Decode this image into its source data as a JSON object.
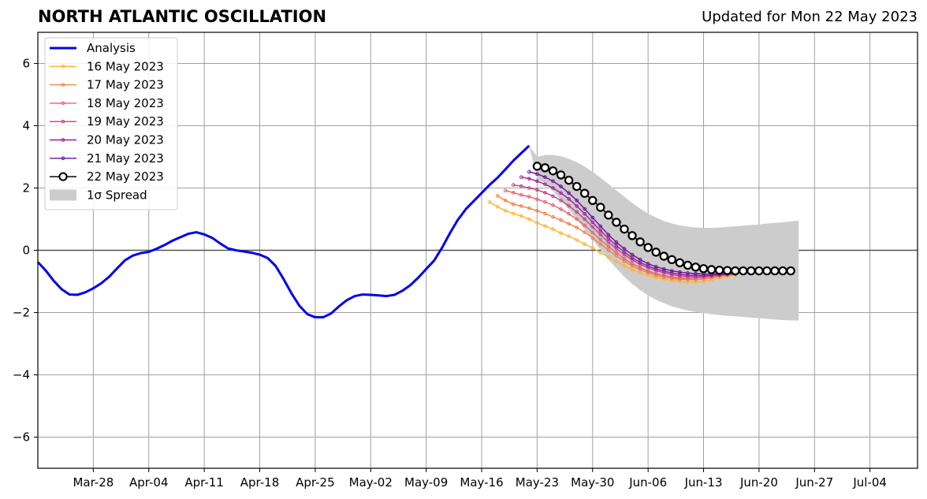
{
  "chart_data": {
    "type": "line",
    "title": "NORTH ATLANTIC OSCILLATION",
    "subtitle": "Updated for Mon 22 May 2023",
    "xlabel": "",
    "ylabel": "",
    "xlim": [
      "2023-03-21",
      "2023-07-10"
    ],
    "ylim": [
      -7,
      7
    ],
    "yticks": [
      -6,
      -4,
      -2,
      0,
      2,
      4,
      6
    ],
    "ytick_labels": [
      "−6",
      "−4",
      "−2",
      "0",
      "2",
      "4",
      "6"
    ],
    "xticks": [
      "2023-03-28",
      "2023-04-04",
      "2023-04-11",
      "2023-04-18",
      "2023-04-25",
      "2023-05-02",
      "2023-05-09",
      "2023-05-16",
      "2023-05-23",
      "2023-05-30",
      "2023-06-06",
      "2023-06-13",
      "2023-06-20",
      "2023-06-27",
      "2023-07-04"
    ],
    "xtick_labels": [
      "Mar-28",
      "Apr-04",
      "Apr-11",
      "Apr-18",
      "Apr-25",
      "May-02",
      "May-09",
      "May-16",
      "May-23",
      "May-30",
      "Jun-06",
      "Jun-13",
      "Jun-20",
      "Jun-27",
      "Jul-04"
    ],
    "grid": true,
    "legend_position": "top-left",
    "analysis": {
      "name": "Analysis",
      "color": "#0000ee",
      "x_start": "2023-03-21",
      "values": [
        -0.38,
        -0.65,
        -0.98,
        -1.25,
        -1.42,
        -1.43,
        -1.35,
        -1.22,
        -1.06,
        -0.85,
        -0.58,
        -0.32,
        -0.17,
        -0.09,
        -0.05,
        0.05,
        0.17,
        0.31,
        0.42,
        0.53,
        0.58,
        0.51,
        0.4,
        0.22,
        0.06,
        0.0,
        -0.04,
        -0.08,
        -0.14,
        -0.25,
        -0.5,
        -0.92,
        -1.38,
        -1.78,
        -2.05,
        -2.15,
        -2.15,
        -2.03,
        -1.8,
        -1.6,
        -1.47,
        -1.42,
        -1.43,
        -1.45,
        -1.47,
        -1.43,
        -1.3,
        -1.12,
        -0.88,
        -0.6,
        -0.33,
        0.08,
        0.55,
        0.98,
        1.32,
        1.58,
        1.84,
        2.1,
        2.33,
        2.6,
        2.88,
        3.12,
        3.36
      ]
    },
    "forecasts": [
      {
        "name": "16 May 2023",
        "color": "#fcb532",
        "x_start": "2023-05-17",
        "values": [
          1.55,
          1.4,
          1.27,
          1.18,
          1.1,
          1.0,
          0.88,
          0.78,
          0.68,
          0.55,
          0.45,
          0.33,
          0.2,
          0.08,
          -0.08,
          -0.22,
          -0.36,
          -0.5,
          -0.62,
          -0.72,
          -0.8,
          -0.87,
          -0.93,
          -0.97,
          -1.0,
          -1.02,
          -1.02,
          -1.0,
          -0.95,
          -0.9,
          -0.84,
          -0.8
        ]
      },
      {
        "name": "17 May 2023",
        "color": "#f47f43",
        "x_start": "2023-05-18",
        "values": [
          1.75,
          1.6,
          1.48,
          1.42,
          1.35,
          1.27,
          1.18,
          1.07,
          0.97,
          0.85,
          0.73,
          0.58,
          0.4,
          0.2,
          0.0,
          -0.18,
          -0.35,
          -0.5,
          -0.62,
          -0.72,
          -0.8,
          -0.86,
          -0.9,
          -0.93,
          -0.94,
          -0.94,
          -0.92,
          -0.88,
          -0.84,
          -0.8,
          -0.77
        ]
      },
      {
        "name": "18 May 2023",
        "color": "#e3636b",
        "x_start": "2023-05-19",
        "values": [
          1.92,
          1.85,
          1.78,
          1.72,
          1.64,
          1.55,
          1.45,
          1.32,
          1.17,
          1.0,
          0.8,
          0.57,
          0.34,
          0.12,
          -0.08,
          -0.27,
          -0.43,
          -0.56,
          -0.67,
          -0.75,
          -0.81,
          -0.86,
          -0.89,
          -0.9,
          -0.89,
          -0.87,
          -0.84,
          -0.81,
          -0.78,
          -0.76
        ]
      },
      {
        "name": "19 May 2023",
        "color": "#c13f83",
        "x_start": "2023-05-20",
        "values": [
          2.1,
          2.06,
          2.0,
          1.94,
          1.85,
          1.74,
          1.6,
          1.43,
          1.23,
          1.0,
          0.75,
          0.5,
          0.26,
          0.05,
          -0.14,
          -0.31,
          -0.45,
          -0.56,
          -0.65,
          -0.72,
          -0.78,
          -0.82,
          -0.84,
          -0.85,
          -0.84,
          -0.82,
          -0.8,
          -0.78,
          -0.76
        ]
      },
      {
        "name": "20 May 2023",
        "color": "#9b1e9b",
        "x_start": "2023-05-21",
        "values": [
          2.35,
          2.3,
          2.22,
          2.12,
          2.0,
          1.84,
          1.65,
          1.42,
          1.17,
          0.9,
          0.63,
          0.38,
          0.15,
          -0.06,
          -0.24,
          -0.39,
          -0.51,
          -0.6,
          -0.67,
          -0.73,
          -0.77,
          -0.8,
          -0.81,
          -0.81,
          -0.8,
          -0.78,
          -0.76,
          -0.75
        ]
      },
      {
        "name": "21 May 2023",
        "color": "#6a0fa0",
        "x_start": "2023-05-22",
        "values": [
          2.52,
          2.45,
          2.35,
          2.22,
          2.05,
          1.84,
          1.6,
          1.33,
          1.05,
          0.77,
          0.5,
          0.26,
          0.05,
          -0.14,
          -0.3,
          -0.43,
          -0.53,
          -0.6,
          -0.66,
          -0.7,
          -0.73,
          -0.75,
          -0.76,
          -0.76,
          -0.75,
          -0.74,
          -0.73
        ]
      }
    ],
    "main_forecast": {
      "name": "22 May 2023",
      "color": "#000000",
      "marker_fill": "#ffffff",
      "x_start": "2023-05-23",
      "values": [
        2.7,
        2.65,
        2.55,
        2.42,
        2.25,
        2.05,
        1.83,
        1.6,
        1.38,
        1.13,
        0.9,
        0.68,
        0.47,
        0.27,
        0.09,
        -0.06,
        -0.19,
        -0.3,
        -0.4,
        -0.48,
        -0.54,
        -0.59,
        -0.62,
        -0.64,
        -0.65,
        -0.66,
        -0.66,
        -0.66,
        -0.66,
        -0.66,
        -0.66,
        -0.66,
        -0.66
      ]
    },
    "spread": {
      "name": "1σ Spread",
      "color": "#cccccc",
      "x_start": "2023-05-22",
      "upper": [
        3.35,
        3.0,
        3.06,
        3.06,
        3.02,
        2.94,
        2.83,
        2.69,
        2.52,
        2.33,
        2.13,
        1.92,
        1.72,
        1.52,
        1.34,
        1.18,
        1.05,
        0.94,
        0.86,
        0.8,
        0.76,
        0.73,
        0.72,
        0.72,
        0.73,
        0.75,
        0.77,
        0.79,
        0.81,
        0.83,
        0.86,
        0.88,
        0.9,
        0.93,
        0.95
      ],
      "lower": [
        3.35,
        2.3,
        2.15,
        1.9,
        1.62,
        1.32,
        1.0,
        0.67,
        0.34,
        0.02,
        -0.3,
        -0.58,
        -0.85,
        -1.08,
        -1.28,
        -1.45,
        -1.59,
        -1.7,
        -1.8,
        -1.87,
        -1.93,
        -1.98,
        -2.02,
        -2.05,
        -2.08,
        -2.1,
        -2.12,
        -2.14,
        -2.16,
        -2.18,
        -2.2,
        -2.22,
        -2.24,
        -2.25,
        -2.26
      ]
    }
  }
}
